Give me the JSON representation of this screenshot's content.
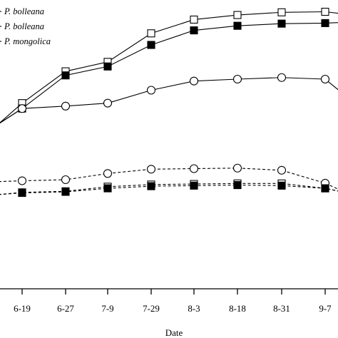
{
  "chart_data": {
    "type": "line",
    "title": "",
    "xlabel": "Date",
    "ylabel": "",
    "categories": [
      "6-19",
      "6-27",
      "7-9",
      "7-29",
      "8-3",
      "8-18",
      "8-31",
      "9-7"
    ],
    "y_domain": [
      0,
      100
    ],
    "grid": false,
    "legend_placement": "top-left",
    "legend": [
      {
        "text": "P. bolleana",
        "marker": "open-square",
        "line": "solid"
      },
      {
        "text": "P. bolleana",
        "marker": "filled-square",
        "line": "solid"
      },
      {
        "text": "P. mongolica",
        "marker": "open-circle",
        "line": "solid"
      }
    ],
    "series": [
      {
        "id": "solid-open-square",
        "marker": "open-square",
        "line": "solid",
        "values": [
          65.7,
          77.5,
          81.0,
          91.6,
          96.7,
          98.4,
          99.4,
          99.6
        ]
      },
      {
        "id": "solid-filled-square",
        "marker": "filled-square",
        "line": "solid",
        "values": [
          63.7,
          76.0,
          79.3,
          87.3,
          92.7,
          94.4,
          95.2,
          95.4
        ]
      },
      {
        "id": "solid-open-circle",
        "marker": "open-circle",
        "line": "solid",
        "values": [
          63.7,
          64.6,
          65.7,
          70.5,
          73.9,
          74.6,
          75.2,
          74.6
        ]
      },
      {
        "id": "dashed-open-circle",
        "marker": "open-circle",
        "line": "dashed",
        "values": [
          36.9,
          37.3,
          39.6,
          41.2,
          41.4,
          41.6,
          40.8,
          36.0
        ]
      },
      {
        "id": "dashed-open-square",
        "marker": "open-square",
        "line": "dashed",
        "values": [
          32.6,
          33.0,
          34.7,
          35.5,
          35.7,
          35.9,
          35.9,
          34.1
        ]
      },
      {
        "id": "dashed-filled-square",
        "marker": "filled-square",
        "line": "dashed",
        "values": [
          32.4,
          32.8,
          34.1,
          34.9,
          35.1,
          35.3,
          35.1,
          34.1
        ]
      }
    ],
    "offscreen_values": {
      "left_solid_start": 58.0,
      "left_dashed_start": 36.6,
      "left_dashed_low_start": 31.8,
      "right_solid_square_end": 99.0,
      "right_solid_filled_end": 95.6,
      "right_solid_circle_end": 70.3,
      "right_dashed_circle_end": 33.6,
      "right_dashed_square_end": 33.0
    }
  }
}
